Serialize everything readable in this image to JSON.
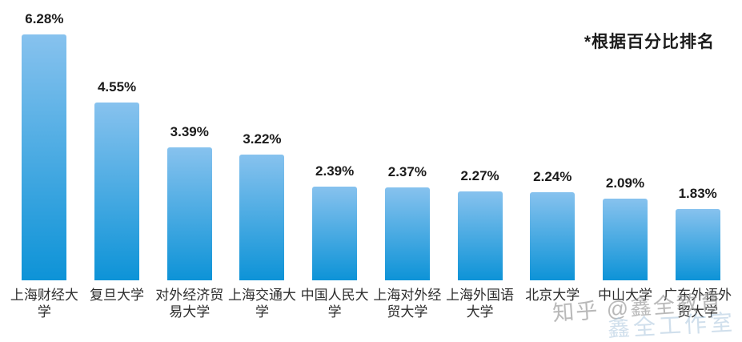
{
  "note": "*根据百分比排名",
  "watermark": {
    "line1": "知乎 @鑫全教育",
    "line2": "鑫全工作室"
  },
  "chart_data": {
    "type": "bar",
    "title": "",
    "xlabel": "",
    "ylabel": "",
    "annotation": "*根据百分比排名",
    "categories": [
      "上海财经大学",
      "复旦大学",
      "对外经济贸易大学",
      "上海交通大学",
      "中国人民大学",
      "上海对外经贸大学",
      "上海外国语大学",
      "北京大学",
      "中山大学",
      "广东外语外贸大学"
    ],
    "values": [
      6.28,
      4.55,
      3.39,
      3.22,
      2.39,
      2.37,
      2.27,
      2.24,
      2.09,
      1.83
    ],
    "value_labels": [
      "6.28%",
      "4.55%",
      "3.39%",
      "3.22%",
      "2.39%",
      "2.37%",
      "2.27%",
      "2.24%",
      "2.09%",
      "1.83%"
    ],
    "ylim": [
      0,
      6.5
    ],
    "grid": false,
    "legend": "none",
    "axes_visible": false,
    "bar_color_top": "#87C2EE",
    "bar_color_bottom": "#0D93D7",
    "value_label_color": "#1b1b1b",
    "category_label_color": "#2d2d2d"
  }
}
